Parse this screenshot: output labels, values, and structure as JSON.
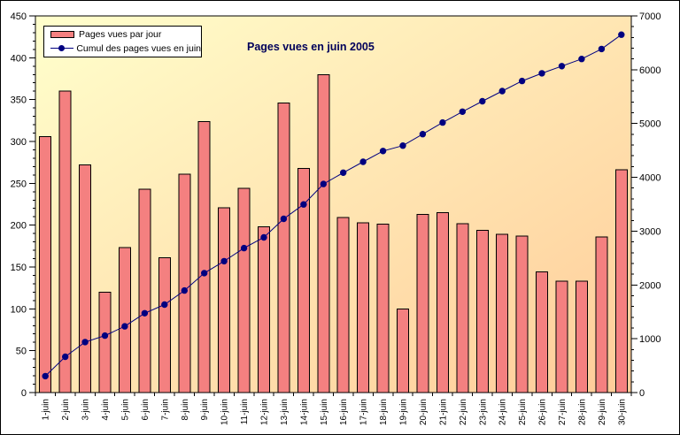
{
  "chart_data": {
    "type": "bar+line",
    "title": "Pages vues en juin 2005",
    "categories": [
      "1-juin",
      "2-juin",
      "3-juin",
      "4-juin",
      "5-juin",
      "6-juin",
      "7-juin",
      "8-juin",
      "9-juin",
      "10-juin",
      "11-juin",
      "12-juin",
      "13-juin",
      "14-juin",
      "15-juin",
      "16-juin",
      "17-juin",
      "18-juin",
      "19-juin",
      "20-juin",
      "21-juin",
      "22-juin",
      "23-juin",
      "24-juin",
      "25-juin",
      "26-juin",
      "27-juin",
      "28-juin",
      "29-juin",
      "30-juin"
    ],
    "series": [
      {
        "name": "Pages vues par jour",
        "type": "bar",
        "axis": "left",
        "values": [
          306,
          360,
          272,
          120,
          173,
          243,
          161,
          261,
          324,
          221,
          244,
          198,
          346,
          268,
          380,
          209,
          203,
          201,
          100,
          213,
          215,
          202,
          194,
          189,
          187,
          144,
          133,
          133,
          186,
          266
        ]
      },
      {
        "name": "Cumul des pages vues en juin",
        "type": "line",
        "axis": "right",
        "values": [
          306,
          666,
          938,
          1058,
          1231,
          1474,
          1635,
          1896,
          2220,
          2441,
          2685,
          2883,
          3229,
          3497,
          3877,
          4086,
          4289,
          4490,
          4590,
          4803,
          5018,
          5220,
          5414,
          5603,
          5790,
          5934,
          6067,
          6200,
          6386,
          6652
        ]
      }
    ],
    "left_axis": {
      "min": 0,
      "max": 450,
      "major": 50,
      "minor": 10,
      "tick_labels": [
        "0",
        "50",
        "100",
        "150",
        "200",
        "250",
        "300",
        "350",
        "400",
        "450"
      ]
    },
    "right_axis": {
      "min": 0,
      "max": 7000,
      "major": 1000,
      "minor": 200,
      "tick_labels": [
        "0",
        "1000",
        "2000",
        "3000",
        "4000",
        "5000",
        "6000",
        "7000"
      ]
    },
    "grid": false,
    "legend_position": "top-left"
  },
  "colors": {
    "bar_fill": "#f48080",
    "bar_border": "#000000",
    "line": "#000080",
    "marker": "#000080",
    "plot_bg_from": "#ffffcc",
    "plot_bg_to": "#ffcc99",
    "title_color": "#00005a",
    "axis_text": "#000000",
    "frame_border": "#000000",
    "legend_bg": "#ffffff"
  }
}
